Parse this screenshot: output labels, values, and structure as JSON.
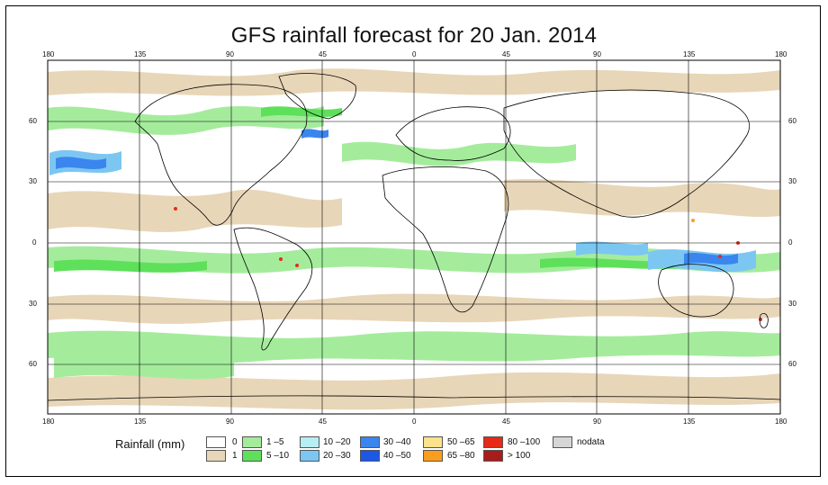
{
  "title": "GFS rainfall forecast for 20 Jan. 2014",
  "lon_labels": [
    "180",
    "135",
    "90",
    "45",
    "0",
    "45",
    "90",
    "135",
    "180"
  ],
  "lat_labels_left": [
    "60",
    "30",
    "0",
    "30",
    "60"
  ],
  "lat_labels_right": [
    "60",
    "30",
    "0",
    "30",
    "60"
  ],
  "legend": {
    "title": "Rainfall (mm)",
    "items": [
      {
        "label": "0",
        "color": "#ffffff"
      },
      {
        "label": "1",
        "color": "#e8d6b8"
      },
      {
        "label": "1 –5",
        "color": "#a4ec9c"
      },
      {
        "label": "5 –10",
        "color": "#5ee05a"
      },
      {
        "label": "10 –20",
        "color": "#b6eef4"
      },
      {
        "label": "20 –30",
        "color": "#7cc6f2"
      },
      {
        "label": "30 –40",
        "color": "#3a86ee"
      },
      {
        "label": "40 –50",
        "color": "#1c58e6"
      },
      {
        "label": "50 –65",
        "color": "#fde28a"
      },
      {
        "label": "65 –80",
        "color": "#fb9e1e"
      },
      {
        "label": "80 –100",
        "color": "#e62a18"
      },
      {
        "label": "> 100",
        "color": "#a81c1c"
      },
      {
        "label": "nodata",
        "color": "#d6d6d6"
      }
    ]
  }
}
